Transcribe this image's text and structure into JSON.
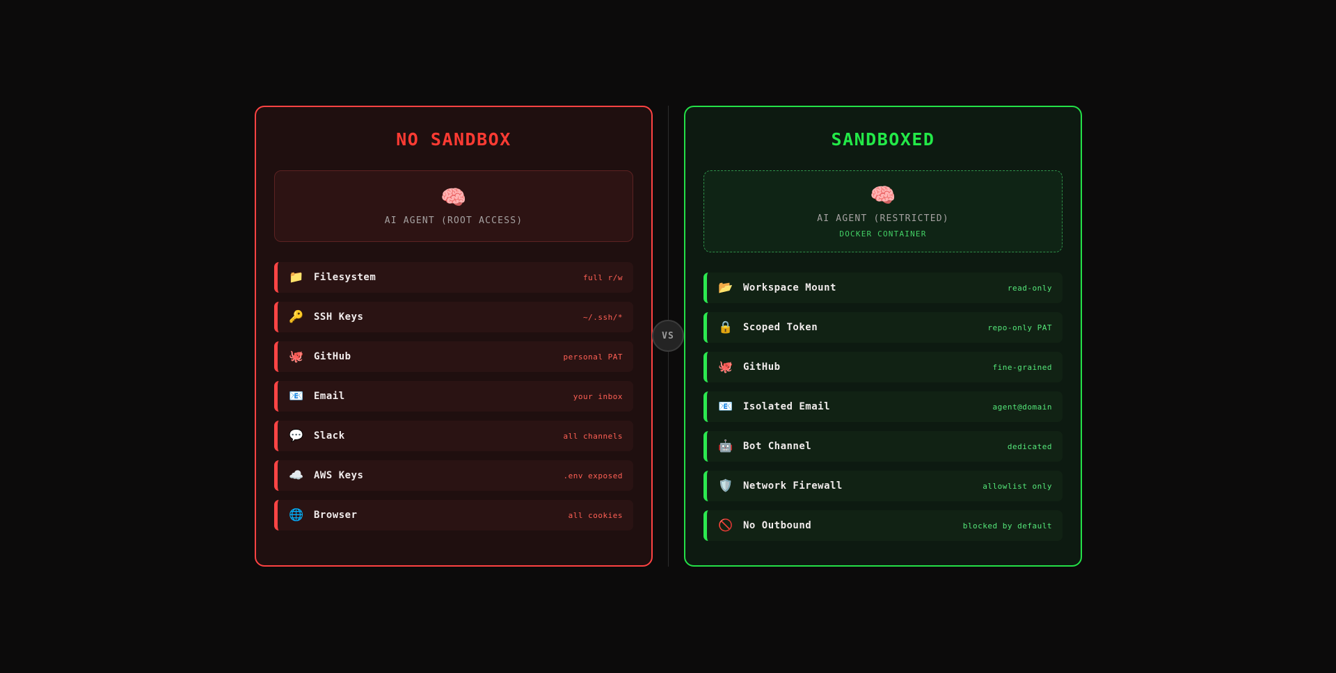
{
  "vs_badge": {
    "label": "VS"
  },
  "left_card": {
    "title": "NO SANDBOX",
    "agent": {
      "emoji": "🧠",
      "label": "AI AGENT (ROOT ACCESS)"
    },
    "items": [
      {
        "icon": "📁",
        "icon_name": "folder-icon",
        "label": "Filesystem",
        "value": "full r/w"
      },
      {
        "icon": "🔑",
        "icon_name": "key-icon",
        "label": "SSH Keys",
        "value": "~/.ssh/*"
      },
      {
        "icon": "🐙",
        "icon_name": "octopus-icon",
        "label": "GitHub",
        "value": "personal PAT"
      },
      {
        "icon": "📧",
        "icon_name": "email-icon",
        "label": "Email",
        "value": "your inbox"
      },
      {
        "icon": "💬",
        "icon_name": "speech-balloon-icon",
        "label": "Slack",
        "value": "all channels"
      },
      {
        "icon": "☁️",
        "icon_name": "cloud-icon",
        "label": "AWS Keys",
        "value": ".env exposed"
      },
      {
        "icon": "🌐",
        "icon_name": "globe-icon",
        "label": "Browser",
        "value": "all cookies"
      }
    ]
  },
  "right_card": {
    "title": "SANDBOXED",
    "agent": {
      "emoji": "🧠",
      "label": "AI AGENT (RESTRICTED)",
      "sublabel": "DOCKER CONTAINER"
    },
    "items": [
      {
        "icon": "📂",
        "icon_name": "open-folder-icon",
        "label": "Workspace Mount",
        "value": "read-only"
      },
      {
        "icon": "🔒",
        "icon_name": "lock-icon",
        "label": "Scoped Token",
        "value": "repo-only PAT"
      },
      {
        "icon": "🐙",
        "icon_name": "octopus-icon",
        "label": "GitHub",
        "value": "fine-grained"
      },
      {
        "icon": "📧",
        "icon_name": "email-icon",
        "label": "Isolated Email",
        "value": "agent@domain"
      },
      {
        "icon": "🤖",
        "icon_name": "robot-icon",
        "label": "Bot Channel",
        "value": "dedicated"
      },
      {
        "icon": "🛡️",
        "icon_name": "shield-icon",
        "label": "Network Firewall",
        "value": "allowlist only"
      },
      {
        "icon": "🚫",
        "icon_name": "prohibited-icon",
        "label": "No Outbound",
        "value": "blocked by default"
      }
    ]
  },
  "colors": {
    "background": "#0c0b0b",
    "danger_border": "#ff4343",
    "danger_title": "#ff3b33",
    "danger_value": "#ff6055",
    "safe_border": "#24e148",
    "safe_title": "#23e948",
    "safe_value": "#55e87a",
    "muted_text": "#a6a2a2"
  }
}
